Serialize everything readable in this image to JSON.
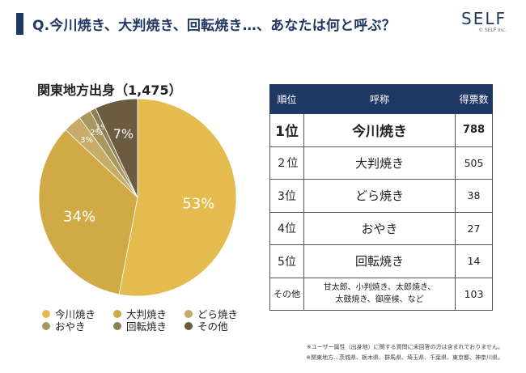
{
  "header": {
    "title": "Q.今川焼き、大判焼き、回転焼き…、あなたは何と呼ぶ？",
    "logo": "SELF",
    "logo_sub": "© SELF Inc."
  },
  "colors": {
    "accent": "#1f3864",
    "slices": [
      "#e3bb4e",
      "#d0aa47",
      "#c7ab68",
      "#a8985e",
      "#8d8057",
      "#6b5c40"
    ]
  },
  "chart_data": {
    "type": "pie",
    "title": "関東地方出身（1,475）",
    "categories": [
      "今川焼き",
      "大判焼き",
      "どら焼き",
      "おやき",
      "回転焼き",
      "その他"
    ],
    "values": [
      53,
      34,
      3,
      2,
      1,
      7
    ],
    "value_labels": [
      "53%",
      "34%",
      "3%",
      "2%",
      "1%",
      "7%"
    ],
    "legend_position": "bottom"
  },
  "table": {
    "headers": [
      "順位",
      "呼称",
      "得票数"
    ],
    "rows": [
      {
        "rank": "1位",
        "name": "今川焼き",
        "votes": "788"
      },
      {
        "rank": "２位",
        "name": "大判焼き",
        "votes": "505"
      },
      {
        "rank": "3位",
        "name": "どら焼き",
        "votes": "38"
      },
      {
        "rank": "4位",
        "name": "おやき",
        "votes": "27"
      },
      {
        "rank": "5位",
        "name": "回転焼き",
        "votes": "14"
      },
      {
        "rank": "その他",
        "name_line1": "甘太郎、小判焼き、太郎焼き、",
        "name_line2": "太鼓焼き、御座候、など",
        "votes": "103"
      }
    ]
  },
  "notes": [
    "※ユーザー属性（出身地）に関する質問に未回答の方は含まれておりません。",
    "※関東地方…茨城県、栃木県、群馬県、埼玉県、千葉県、東京都、神奈川県。"
  ]
}
